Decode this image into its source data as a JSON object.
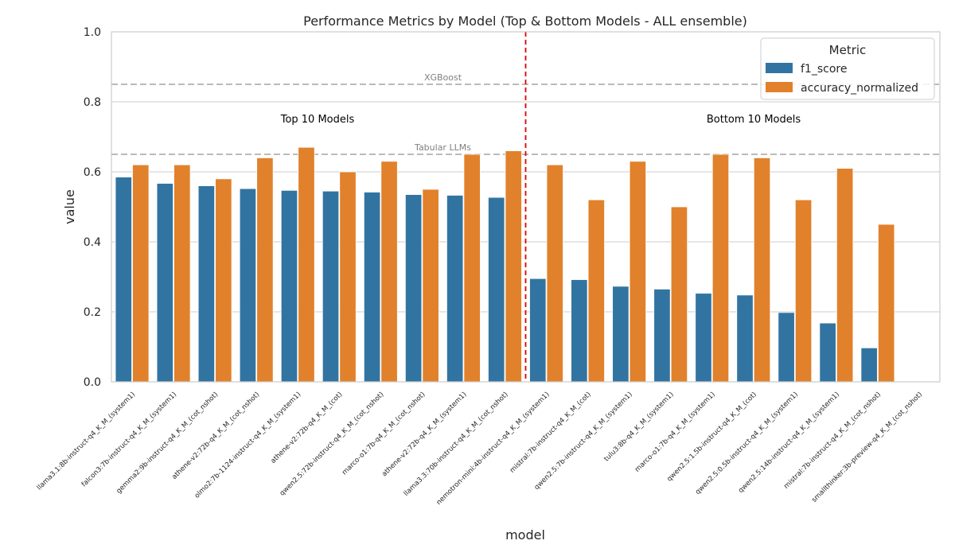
{
  "chart_data": {
    "type": "bar",
    "title": "Performance Metrics by Model (Top & Bottom Models - ALL ensemble)",
    "xlabel": "model",
    "ylabel": "value",
    "ylim": [
      0,
      1.0
    ],
    "yticks": [
      "0.0",
      "0.2",
      "0.4",
      "0.6",
      "0.8",
      "1.0"
    ],
    "grid": true,
    "legend": {
      "title": "Metric",
      "placement": "top-right"
    },
    "categories": [
      "llama3.1:8b-instruct-q4_K_M_(system1)",
      "falcon3:7b-instruct-q4_K_M_(system1)",
      "gemma2:9b-instruct-q4_K_M_(cot_nshot)",
      "athene-v2:72b-q4_K_M_(cot_nshot)",
      "olmo2:7b-1124-instruct-q4_K_M_(system1)",
      "athene-v2:72b-q4_K_M_(cot)",
      "qwen2.5:72b-instruct-q4_K_M_(cot_nshot)",
      "marco-o1:7b-q4_K_M_(cot_nshot)",
      "athene-v2:72b-q4_K_M_(system1)",
      "llama3.3:70b-instruct-q4_K_M_(cot_nshot)",
      "nemotron-mini:4b-instruct-q4_K_M_(system1)",
      "mistral:7b-instruct-q4_K_M_(cot)",
      "qwen2.5:7b-instruct-q4_K_M_(system1)",
      "tulu3:8b-q4_K_M_(system1)",
      "marco-o1:7b-q4_K_M_(system1)",
      "qwen2.5:1.5b-instruct-q4_K_M_(cot)",
      "qwen2.5:0.5b-instruct-q4_K_M_(system1)",
      "qwen2.5:14b-instruct-q4_K_M_(system1)",
      "mistral:7b-instruct-q4_K_M_(cot_nshot)",
      "smallthinker:3b-preview-q4_K_M_(cot_nshot)"
    ],
    "series": [
      {
        "name": "f1_score",
        "color": "#3274a1",
        "values": [
          0.585,
          0.567,
          0.56,
          0.552,
          0.547,
          0.545,
          0.542,
          0.535,
          0.533,
          0.527,
          0.295,
          0.292,
          0.273,
          0.265,
          0.253,
          0.248,
          0.198,
          0.168,
          0.097,
          null
        ]
      },
      {
        "name": "accuracy_normalized",
        "color": "#e1812c",
        "values": [
          0.62,
          0.62,
          0.58,
          0.64,
          0.67,
          0.6,
          0.63,
          0.55,
          0.65,
          0.66,
          0.62,
          0.52,
          0.63,
          0.5,
          0.65,
          0.64,
          0.52,
          0.61,
          0.45,
          null
        ]
      }
    ],
    "reference_lines": [
      {
        "label": "XGBoost",
        "value": 0.85,
        "color": "#b0b0b0"
      },
      {
        "label": "Tabular LLMs",
        "value": 0.65,
        "color": "#b0b0b0"
      }
    ],
    "divider": {
      "after_category_index": 9,
      "color": "#e00000"
    },
    "group_labels": [
      "Top 10 Models",
      "Bottom 10 Models"
    ]
  }
}
